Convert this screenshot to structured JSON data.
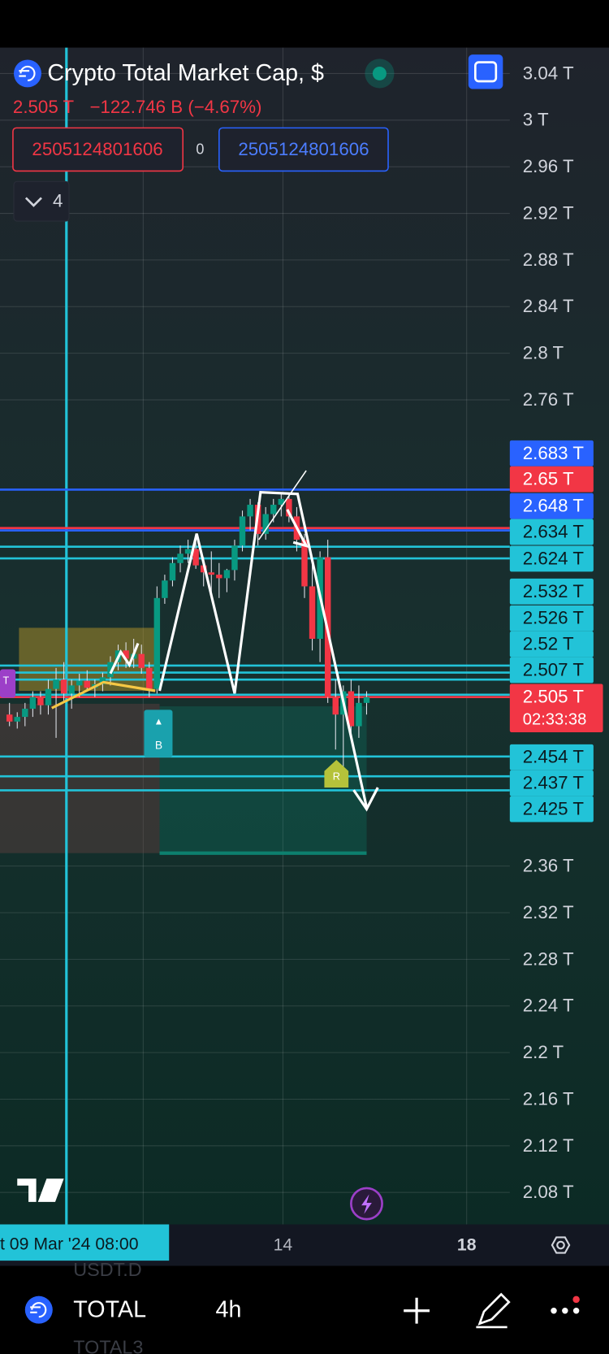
{
  "header": {
    "title": "Crypto Total Market Cap, $",
    "price": "2.505 T",
    "change": "−122.746 B (−4.67%)",
    "input_left": "2505124801606",
    "input_mid": "0",
    "input_right": "2505124801606",
    "indicators": "4"
  },
  "price_axis": {
    "ylim": [
      2.08,
      3.04
    ],
    "ticks": [
      {
        "value": 3.04,
        "label": "3.04 T"
      },
      {
        "value": 3,
        "label": "3 T"
      },
      {
        "value": 2.96,
        "label": "2.96 T"
      },
      {
        "value": 2.92,
        "label": "2.92 T"
      },
      {
        "value": 2.88,
        "label": "2.88 T"
      },
      {
        "value": 2.84,
        "label": "2.84 T"
      },
      {
        "value": 2.8,
        "label": "2.8 T"
      },
      {
        "value": 2.76,
        "label": "2.76 T"
      },
      {
        "value": 2.36,
        "label": "2.36 T"
      },
      {
        "value": 2.32,
        "label": "2.32 T"
      },
      {
        "value": 2.28,
        "label": "2.28 T"
      },
      {
        "value": 2.24,
        "label": "2.24 T"
      },
      {
        "value": 2.2,
        "label": "2.2 T"
      },
      {
        "value": 2.16,
        "label": "2.16 T"
      },
      {
        "value": 2.12,
        "label": "2.12 T"
      },
      {
        "value": 2.08,
        "label": "2.08 T"
      }
    ]
  },
  "price_tags": [
    {
      "value": 2.683,
      "label": "2.683 T",
      "color": "#2962ff",
      "text_color": "#ffffff"
    },
    {
      "value": 2.65,
      "label": "2.65 T",
      "color": "#f23645",
      "text_color": "#ffffff"
    },
    {
      "value": 2.648,
      "label": "2.648 T",
      "color": "#2962ff",
      "text_color": "#ffffff"
    },
    {
      "value": 2.634,
      "label": "2.634 T",
      "color": "#22c3d8",
      "text_color": "#0b1a1f"
    },
    {
      "value": 2.624,
      "label": "2.624 T",
      "color": "#22c3d8",
      "text_color": "#0b1a1f"
    },
    {
      "value": 2.532,
      "label": "2.532 T",
      "color": "#22c3d8",
      "text_color": "#0b1a1f"
    },
    {
      "value": 2.526,
      "label": "2.526 T",
      "color": "#22c3d8",
      "text_color": "#0b1a1f"
    },
    {
      "value": 2.52,
      "label": "2.52 T",
      "color": "#22c3d8",
      "text_color": "#0b1a1f"
    },
    {
      "value": 2.507,
      "label": "2.507 T",
      "color": "#22c3d8",
      "text_color": "#0b1a1f"
    },
    {
      "value": 2.505,
      "label": "2.505 T",
      "color": "#f23645",
      "text_color": "#ffffff"
    },
    {
      "value": 2.454,
      "label": "2.454 T",
      "color": "#22c3d8",
      "text_color": "#0b1a1f"
    },
    {
      "value": 2.437,
      "label": "2.437 T",
      "color": "#22c3d8",
      "text_color": "#0b1a1f"
    },
    {
      "value": 2.425,
      "label": "2.425 T",
      "color": "#22c3d8",
      "text_color": "#0b1a1f"
    }
  ],
  "countdown": "02:33:38",
  "candles": [
    [
      2.49,
      2.5,
      2.48,
      2.484
    ],
    [
      2.484,
      2.492,
      2.478,
      2.488
    ],
    [
      2.488,
      2.5,
      2.48,
      2.495
    ],
    [
      2.495,
      2.51,
      2.488,
      2.505
    ],
    [
      2.505,
      2.51,
      2.49,
      2.498
    ],
    [
      2.498,
      2.52,
      2.49,
      2.512
    ],
    [
      2.512,
      2.53,
      2.47,
      2.52
    ],
    [
      2.52,
      2.535,
      2.5,
      2.508
    ],
    [
      2.508,
      2.52,
      2.495,
      2.515
    ],
    [
      2.515,
      2.525,
      2.505,
      2.519
    ],
    [
      2.519,
      2.528,
      2.51,
      2.513
    ],
    [
      2.513,
      2.52,
      2.505,
      2.516
    ],
    [
      2.516,
      2.526,
      2.51,
      2.522
    ],
    [
      2.522,
      2.54,
      2.515,
      2.535
    ],
    [
      2.535,
      2.55,
      2.528,
      2.545
    ],
    [
      2.545,
      2.552,
      2.53,
      2.538
    ],
    [
      2.538,
      2.555,
      2.53,
      2.542
    ],
    [
      2.542,
      2.55,
      2.525,
      2.53
    ],
    [
      2.53,
      2.535,
      2.505,
      2.512
    ],
    [
      2.512,
      2.6,
      2.508,
      2.59
    ],
    [
      2.59,
      2.61,
      2.585,
      2.605
    ],
    [
      2.605,
      2.625,
      2.6,
      2.62
    ],
    [
      2.62,
      2.635,
      2.612,
      2.628
    ],
    [
      2.628,
      2.64,
      2.62,
      2.632
    ],
    [
      2.632,
      2.64,
      2.615,
      2.618
    ],
    [
      2.618,
      2.625,
      2.6,
      2.612
    ],
    [
      2.612,
      2.63,
      2.595,
      2.61
    ],
    [
      2.61,
      2.62,
      2.59,
      2.607
    ],
    [
      2.607,
      2.615,
      2.595,
      2.614
    ],
    [
      2.614,
      2.64,
      2.605,
      2.635
    ],
    [
      2.635,
      2.665,
      2.63,
      2.66
    ],
    [
      2.66,
      2.675,
      2.648,
      2.67
    ],
    [
      2.67,
      2.672,
      2.635,
      2.645
    ],
    [
      2.645,
      2.668,
      2.64,
      2.662
    ],
    [
      2.662,
      2.675,
      2.655,
      2.67
    ],
    [
      2.67,
      2.68,
      2.66,
      2.675
    ],
    [
      2.675,
      2.68,
      2.655,
      2.66
    ],
    [
      2.66,
      2.668,
      2.63,
      2.64
    ],
    [
      2.64,
      2.645,
      2.59,
      2.6
    ],
    [
      2.6,
      2.62,
      2.545,
      2.555
    ],
    [
      2.555,
      2.63,
      2.535,
      2.625
    ],
    [
      2.625,
      2.64,
      2.5,
      2.505
    ],
    [
      2.505,
      2.52,
      2.46,
      2.49
    ],
    [
      2.49,
      2.515,
      2.44,
      2.51
    ],
    [
      2.51,
      2.52,
      2.47,
      2.48
    ],
    [
      2.48,
      2.515,
      2.47,
      2.5
    ],
    [
      2.5,
      2.51,
      2.49,
      2.505
    ]
  ],
  "markers": {
    "buy": "B",
    "rocket": "R",
    "t": "T"
  },
  "time_axis": {
    "cursor_label": "t 09 Mar '24  08:00",
    "labels": [
      "14",
      "18"
    ]
  },
  "toolbar": {
    "symbol": "TOTAL",
    "interval": "4h",
    "faded_top": "USDT.D",
    "faded_bottom": "TOTAL3"
  }
}
